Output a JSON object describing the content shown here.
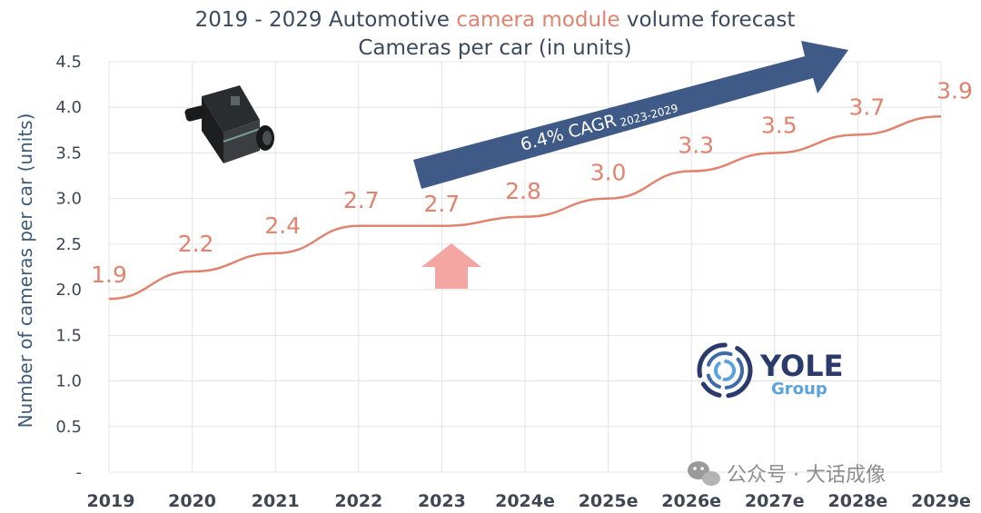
{
  "colors": {
    "line": "#e0836f",
    "label": "#e0836f",
    "title": "#3b4a5c",
    "title_highlight": "#e0836f",
    "grid": "#e4e4e4",
    "cagr_arrow": "#3f5a86",
    "up_arrow": "#f4a6a2"
  },
  "chart_data": {
    "type": "line",
    "title_parts": [
      "2019 - 2029 Automotive ",
      "camera module",
      " volume forecast"
    ],
    "subtitle": "Cameras per car (in units)",
    "ylabel": "Number of  cameras per car (units)",
    "xlabel": "",
    "categories": [
      "2019",
      "2020",
      "2021",
      "2022",
      "2023",
      "2024e",
      "2025e",
      "2026e",
      "2027e",
      "2028e",
      "2029e"
    ],
    "series": [
      {
        "values": [
          1.9,
          2.2,
          2.4,
          2.7,
          2.7,
          2.8,
          3.0,
          3.3,
          3.5,
          3.7,
          3.9
        ]
      }
    ],
    "data_labels": [
      "1.9",
      "2.2",
      "2.4",
      "2.7",
      "2.7",
      "2.8",
      "3.0",
      "3.3",
      "3.5",
      "3.7",
      "3.9"
    ],
    "yticks": [
      0,
      0.5,
      1.0,
      1.5,
      2.0,
      2.5,
      3.0,
      3.5,
      4.0,
      4.5
    ],
    "ytick_labels": [
      "-",
      "0.5",
      "1.0",
      "1.5",
      "2.0",
      "2.5",
      "3.0",
      "3.5",
      "4.0",
      "4.5"
    ],
    "ylim": [
      0,
      4.5
    ],
    "grid": true,
    "annotations": {
      "cagr_main": "6.4% CAGR",
      "cagr_sub": "2023-2029",
      "up_arrow_category": "2023"
    }
  },
  "logo": {
    "name": "YOLE",
    "sub": "Group"
  },
  "watermark": {
    "text": "公众号 · 大话成像",
    "icon": "wechat-icon"
  },
  "image": {
    "icon": "camera-module-icon"
  }
}
